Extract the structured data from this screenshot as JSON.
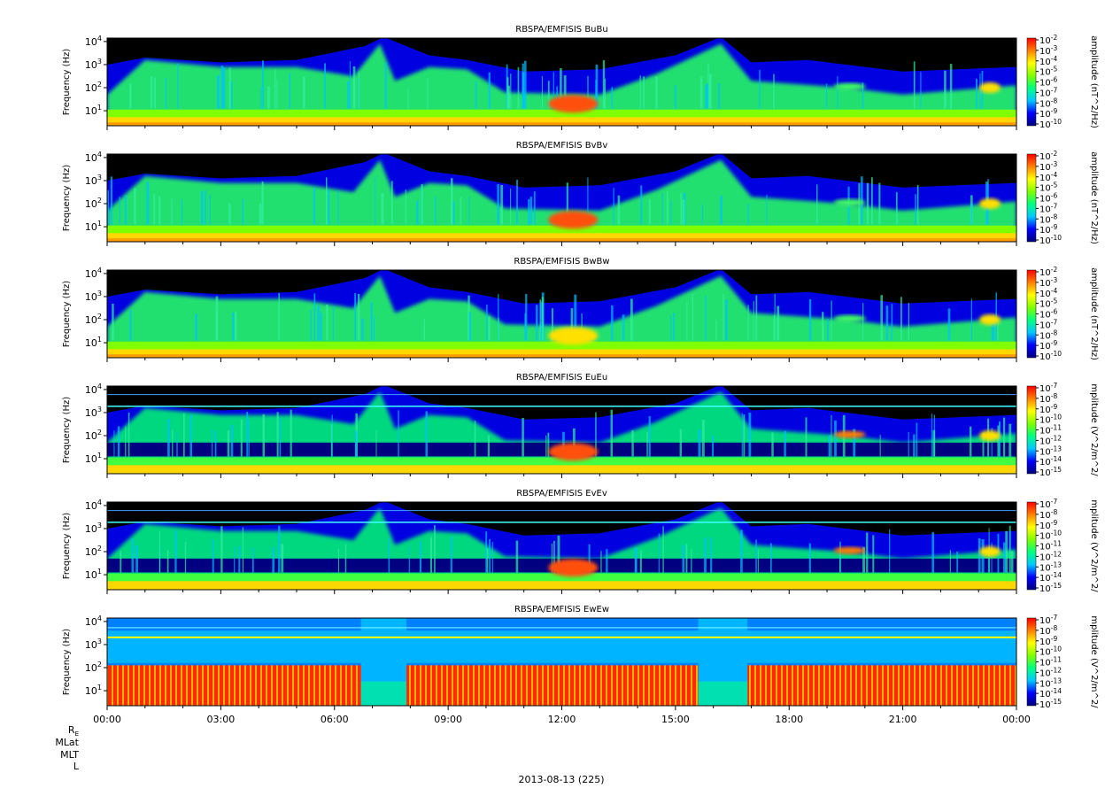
{
  "chart_data": {
    "type": "heatmap",
    "x_range": [
      "00:00",
      "00:00"
    ],
    "x_tick_labels": [
      "00:00",
      "03:00",
      "06:00",
      "09:00",
      "12:00",
      "15:00",
      "18:00",
      "21:00",
      "00:00"
    ],
    "x_ticks_hours": [
      0,
      3,
      6,
      9,
      12,
      15,
      18,
      21,
      24
    ],
    "y_tick_values": [
      10,
      100,
      1000,
      10000
    ],
    "y_tick_base": "10",
    "y_tick_exponents": [
      "1",
      "2",
      "3",
      "4"
    ],
    "ylabel": "Frequency (Hz)",
    "ylim_log10": [
      0.35,
      4.15
    ],
    "y_scale": "log",
    "ephemeris_labels": [
      "R",
      "MLat",
      "MLT",
      "L"
    ],
    "ephemeris_subscript": "E",
    "date_label": "2013-08-13 (225)",
    "colormap": [
      "#000080",
      "#0000ff",
      "#00c8ff",
      "#00ff80",
      "#80ff00",
      "#ffff00",
      "#ff8000",
      "#ff0000"
    ],
    "panels": [
      {
        "title": "RBSPA/EMFISIS  BuBu",
        "colorbar_label": "amplitude (nT^2/Hz)",
        "colorbar_exponents": [
          "-2",
          "-3",
          "-4",
          "-5",
          "-6",
          "-7",
          "-8",
          "-9",
          "-10"
        ],
        "kind": "B"
      },
      {
        "title": "RBSPA/EMFISIS  BvBv",
        "colorbar_label": "amplitude (nT^2/Hz)",
        "colorbar_exponents": [
          "-2",
          "-3",
          "-4",
          "-5",
          "-6",
          "-7",
          "-8",
          "-9",
          "-10"
        ],
        "kind": "B"
      },
      {
        "title": "RBSPA/EMFISIS  BwBw",
        "colorbar_label": "amplitude (nT^2/Hz)",
        "colorbar_exponents": [
          "-2",
          "-3",
          "-4",
          "-5",
          "-6",
          "-7",
          "-8",
          "-9",
          "-10"
        ],
        "kind": "B"
      },
      {
        "title": "RBSPA/EMFISIS  EuEu",
        "colorbar_label": "mplitude (V^2/m^2/",
        "colorbar_exponents": [
          "-7",
          "-8",
          "-9",
          "-10",
          "-11",
          "-12",
          "-13",
          "-14",
          "-15"
        ],
        "kind": "E"
      },
      {
        "title": "RBSPA/EMFISIS  EvEv",
        "colorbar_label": "mplitude (V^2/m^2/",
        "colorbar_exponents": [
          "-7",
          "-8",
          "-9",
          "-10",
          "-11",
          "-12",
          "-13",
          "-14",
          "-15"
        ],
        "kind": "E"
      },
      {
        "title": "RBSPA/EMFISIS  EwEw",
        "colorbar_label": "mplitude (V^2/m^2/",
        "colorbar_exponents": [
          "-7",
          "-8",
          "-9",
          "-10",
          "-11",
          "-12",
          "-13",
          "-14",
          "-15"
        ],
        "kind": "Ew"
      }
    ]
  }
}
